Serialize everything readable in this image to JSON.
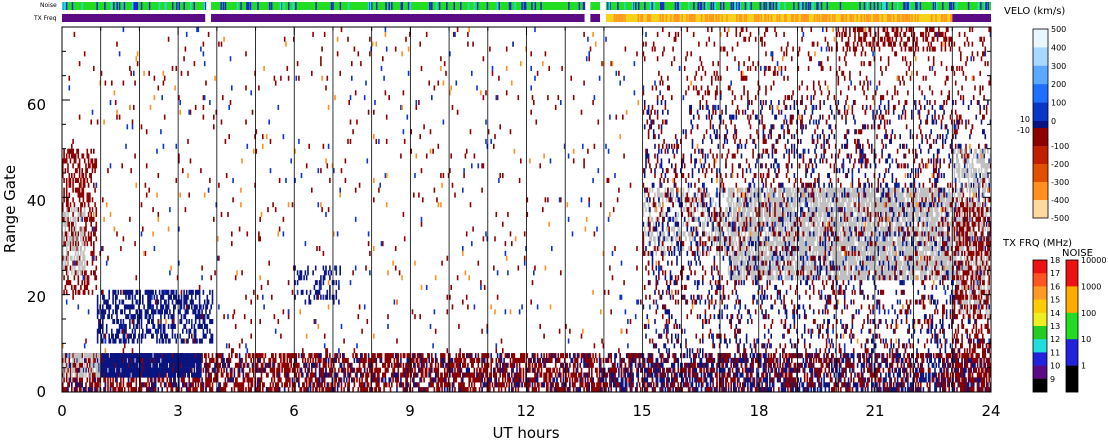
{
  "chart_data": {
    "type": "heatmap",
    "xlabel": "UT hours",
    "ylabel": "Range Gate",
    "xlim": [
      0,
      24
    ],
    "ylim": [
      0,
      75
    ],
    "x_ticks": [
      "0",
      "3",
      "6",
      "9",
      "12",
      "15",
      "18",
      "21",
      "24"
    ],
    "y_ticks": [
      "0",
      "20",
      "40",
      "60"
    ],
    "top_strips": [
      {
        "label": "Noise",
        "segments": [
          {
            "start": 0.0,
            "end": 3.7,
            "color": "#22dd22"
          },
          {
            "start": 3.85,
            "end": 13.5,
            "color": "#22dd22"
          },
          {
            "start": 13.65,
            "end": 13.9,
            "color": "#22dd22"
          },
          {
            "start": 14.05,
            "end": 24.0,
            "color": "#22dd22"
          }
        ]
      },
      {
        "label": "TX Freq",
        "segments": [
          {
            "start": 0.0,
            "end": 3.7,
            "color": "#5a0a82"
          },
          {
            "start": 3.85,
            "end": 13.5,
            "color": "#5a0a82"
          },
          {
            "start": 13.65,
            "end": 13.9,
            "color": "#5a0a82"
          },
          {
            "start": 14.05,
            "end": 23.0,
            "color": "#f7d21b"
          },
          {
            "start": 23.0,
            "end": 24.0,
            "color": "#5a0a82"
          }
        ]
      }
    ],
    "colorbars": [
      {
        "title": "VELO (km/s)",
        "stops": [
          {
            "label": "500",
            "color": "#e8f6ff"
          },
          {
            "label": "400",
            "color": "#a8d8ff"
          },
          {
            "label": "300",
            "color": "#5aa8ff"
          },
          {
            "label": "200",
            "color": "#1e6fff"
          },
          {
            "label": "100",
            "color": "#0a36c8"
          },
          {
            "label": "0",
            "color": "#0a1480"
          },
          {
            "label": "-100",
            "color": "#8b0000"
          },
          {
            "label": "-200",
            "color": "#c02000"
          },
          {
            "label": "-300",
            "color": "#e05000"
          },
          {
            "label": "-400",
            "color": "#ff9020"
          },
          {
            "label": "-500",
            "color": "#ffd8a0"
          }
        ],
        "extra_labels": [
          "10",
          "-10"
        ]
      },
      {
        "title": "TX FRQ (MHz)",
        "stops": [
          {
            "label": "18",
            "color": "#ee1111"
          },
          {
            "label": "17",
            "color": "#ff5522"
          },
          {
            "label": "16",
            "color": "#ff9922"
          },
          {
            "label": "15",
            "color": "#ffcc00"
          },
          {
            "label": "14",
            "color": "#eeee22"
          },
          {
            "label": "13",
            "color": "#22cc22"
          },
          {
            "label": "12",
            "color": "#22dddd"
          },
          {
            "label": "11",
            "color": "#2222dd"
          },
          {
            "label": "10",
            "color": "#5a0a82"
          },
          {
            "label": "9",
            "color": "#000000"
          }
        ]
      },
      {
        "title": "NOISE",
        "stops": [
          {
            "label": "10000",
            "color": "#ee1111"
          },
          {
            "label": "1000",
            "color": "#ffaa00"
          },
          {
            "label": "100",
            "color": "#22dd22"
          },
          {
            "label": "10",
            "color": "#2222dd"
          },
          {
            "label": "1",
            "color": "#000000"
          }
        ]
      }
    ],
    "regions": [
      {
        "name": "morning-low-gates",
        "x": [
          0.0,
          14.0
        ],
        "y": [
          0,
          8
        ],
        "color": "#8b0000",
        "density": 0.55
      },
      {
        "name": "morning-low-gates-blue",
        "x": [
          0.0,
          14.0
        ],
        "y": [
          0,
          8
        ],
        "color": "#0a1480",
        "density": 0.12
      },
      {
        "name": "early-blue-patch",
        "x": [
          0.9,
          3.6
        ],
        "y": [
          3,
          8
        ],
        "color": "#0a1480",
        "density": 0.9
      },
      {
        "name": "early-blue-arc",
        "x": [
          0.9,
          3.9
        ],
        "y": [
          10,
          21
        ],
        "color": "#0a1480",
        "density": 0.45
      },
      {
        "name": "early-grey",
        "x": [
          0.0,
          1.0
        ],
        "y": [
          3,
          8
        ],
        "color": "#c0c0c0",
        "density": 0.5
      },
      {
        "name": "early-red-column",
        "x": [
          0.0,
          0.9
        ],
        "y": [
          20,
          50
        ],
        "color": "#8b0000",
        "density": 0.35
      },
      {
        "name": "early-grey-column",
        "x": [
          0.0,
          0.6
        ],
        "y": [
          24,
          38
        ],
        "color": "#c0c0c0",
        "density": 0.4
      },
      {
        "name": "midday-patch",
        "x": [
          6.0,
          7.2
        ],
        "y": [
          18,
          26
        ],
        "color": "#0a1480",
        "density": 0.25
      },
      {
        "name": "afternoon-low-gates",
        "x": [
          14.0,
          24.0
        ],
        "y": [
          0,
          8
        ],
        "color": "#0a1480",
        "density": 0.45
      },
      {
        "name": "afternoon-low-gates-red",
        "x": [
          14.0,
          24.0
        ],
        "y": [
          0,
          8
        ],
        "color": "#8b0000",
        "density": 0.3
      },
      {
        "name": "afternoon-grey-band",
        "x": [
          17.2,
          23.0
        ],
        "y": [
          23,
          42
        ],
        "color": "#c0c0c0",
        "density": 0.75
      },
      {
        "name": "afternoon-grey-band-2",
        "x": [
          15.0,
          17.2
        ],
        "y": [
          28,
          42
        ],
        "color": "#c0c0c0",
        "density": 0.35
      },
      {
        "name": "afternoon-blue-scatter",
        "x": [
          15.0,
          24.0
        ],
        "y": [
          8,
          60
        ],
        "color": "#0a1480",
        "density": 0.1
      },
      {
        "name": "afternoon-red-scatter",
        "x": [
          15.0,
          24.0
        ],
        "y": [
          8,
          75
        ],
        "color": "#8b0000",
        "density": 0.08
      },
      {
        "name": "late-top-red",
        "x": [
          20.0,
          23.0
        ],
        "y": [
          70,
          75
        ],
        "color": "#8b0000",
        "density": 0.35
      },
      {
        "name": "late-grey-column",
        "x": [
          23.0,
          24.0
        ],
        "y": [
          15,
          50
        ],
        "color": "#c0c0c0",
        "density": 0.4
      },
      {
        "name": "late-red-column",
        "x": [
          23.0,
          24.0
        ],
        "y": [
          0,
          40
        ],
        "color": "#8b0000",
        "density": 0.35
      },
      {
        "name": "sparse-everywhere",
        "x": [
          0.0,
          24.0
        ],
        "y": [
          8,
          75
        ],
        "color": "#8b0000",
        "density": 0.015
      },
      {
        "name": "sparse-blue-everywhere",
        "x": [
          0.0,
          24.0
        ],
        "y": [
          8,
          75
        ],
        "color": "#0a36c8",
        "density": 0.008
      },
      {
        "name": "sparse-orange",
        "x": [
          0.0,
          24.0
        ],
        "y": [
          8,
          75
        ],
        "color": "#ff9020",
        "density": 0.004
      }
    ]
  }
}
